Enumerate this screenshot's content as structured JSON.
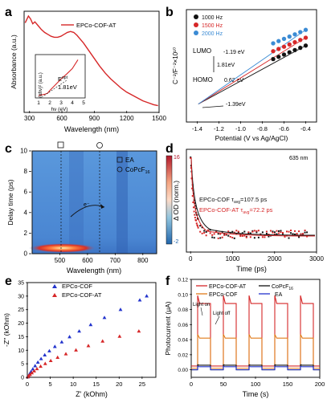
{
  "panels": {
    "a": {
      "letter": "a"
    },
    "b": {
      "letter": "b"
    },
    "c": {
      "letter": "c"
    },
    "d": {
      "letter": "d"
    },
    "e": {
      "letter": "e"
    },
    "f": {
      "letter": "f"
    }
  },
  "chart_data": [
    {
      "panel": "a",
      "type": "line",
      "xlabel": "Wavelength (nm)",
      "ylabel": "Absorbance (a.u.)",
      "xlim": [
        250,
        1500
      ],
      "x_ticks": [
        "300",
        "600",
        "900",
        "1200",
        "1500"
      ],
      "series": [
        {
          "name": "EPCo-COF-AT",
          "color": "#d62728",
          "x": [
            260,
            290,
            310,
            330,
            350,
            380,
            410,
            440,
            470,
            500,
            530,
            560,
            590,
            620,
            650,
            680,
            710,
            740,
            770,
            800,
            850,
            900,
            950,
            1000,
            1050,
            1100,
            1150,
            1200,
            1250,
            1300,
            1350,
            1400,
            1450,
            1490
          ],
          "y": [
            0.93,
            1.0,
            0.97,
            0.92,
            0.94,
            0.9,
            0.86,
            0.83,
            0.81,
            0.79,
            0.78,
            0.78,
            0.79,
            0.81,
            0.83,
            0.84,
            0.83,
            0.8,
            0.76,
            0.72,
            0.64,
            0.56,
            0.48,
            0.41,
            0.35,
            0.3,
            0.25,
            0.21,
            0.18,
            0.15,
            0.12,
            0.1,
            0.08,
            0.07
          ]
        }
      ],
      "inset": {
        "xlabel": "hν (eV)",
        "ylabel": "(αhν)² (a.u.)",
        "x_ticks": [
          "1",
          "2",
          "3",
          "4",
          "5"
        ],
        "xlim": [
          1,
          5
        ],
        "annotation_label": "E",
        "annotation_sup": "g",
        "annotation_sub": "opt",
        "annotation_value": "1.81eV",
        "x": [
          1.0,
          1.5,
          1.8,
          2.0,
          2.5,
          3.0,
          3.5,
          4.0,
          4.5
        ],
        "y": [
          0.02,
          0.05,
          0.08,
          0.15,
          0.3,
          0.45,
          0.58,
          0.72,
          0.95
        ]
      }
    },
    {
      "panel": "b",
      "type": "scatter",
      "xlabel": "Potential (V vs Ag/AgCl)",
      "ylabel": "C⁻²/F⁻²×10¹⁰",
      "xlim": [
        -1.5,
        -0.3
      ],
      "x_ticks": [
        "-1.4",
        "-1.2",
        "-1.0",
        "-0.8",
        "-0.6",
        "-0.4"
      ],
      "legend": [
        {
          "label": "1000 Hz",
          "color": "#111111"
        },
        {
          "label": "1500 Hz",
          "color": "#d62728"
        },
        {
          "label": "2000 Hz",
          "color": "#3b8bd4"
        }
      ],
      "annotations": {
        "lumo": "LUMO",
        "lumo_value": "-1.19 eV",
        "gap": "1.81eV",
        "homo": "HOMO",
        "homo_value": "0.62 eV",
        "flat_band": "-1.39eV"
      },
      "series": [
        {
          "name": "1000 Hz",
          "x": [
            -0.7,
            -0.65,
            -0.6,
            -0.55,
            -0.5,
            -0.45,
            -0.4
          ],
          "y": [
            0.56,
            0.58,
            0.6,
            0.62,
            0.64,
            0.66,
            0.68
          ]
        },
        {
          "name": "1500 Hz",
          "x": [
            -0.7,
            -0.65,
            -0.6,
            -0.55,
            -0.5,
            -0.45,
            -0.4
          ],
          "y": [
            0.63,
            0.65,
            0.67,
            0.69,
            0.71,
            0.73,
            0.75
          ]
        },
        {
          "name": "2000 Hz",
          "x": [
            -0.7,
            -0.65,
            -0.6,
            -0.55,
            -0.5,
            -0.45,
            -0.4
          ],
          "y": [
            0.7,
            0.72,
            0.74,
            0.76,
            0.78,
            0.8,
            0.82
          ]
        }
      ]
    },
    {
      "panel": "c",
      "type": "heatmap",
      "xlabel": "Wavelength (nm)",
      "ylabel": "Delay time (ps)",
      "xlim": [
        400,
        850
      ],
      "ylim": [
        0,
        10
      ],
      "x_ticks": [
        "500",
        "600",
        "700",
        "800"
      ],
      "y_ticks": [
        "0",
        "2",
        "4",
        "6",
        "8",
        "10"
      ],
      "colorbar_ticks": [
        "16",
        "-2"
      ],
      "legend": [
        {
          "label": "EA",
          "marker": "square"
        },
        {
          "label": "CoPcF",
          "marker": "circle",
          "sub": "16"
        }
      ],
      "arrow_label": "e⁻"
    },
    {
      "panel": "d",
      "type": "scatter",
      "xlabel": "Time (ps)",
      "ylabel": "Δ OD (norm.)",
      "xlim": [
        -100,
        3000
      ],
      "x_ticks": [
        "0",
        "1000",
        "2000",
        "3000"
      ],
      "probe_label": "635 nm",
      "series": [
        {
          "name": "EPCo-COF",
          "color": "#111111",
          "tau_label": "τ",
          "tau_sub": "avg",
          "tau_value": "=107.5 ps"
        },
        {
          "name": "EPCo-COF-AT",
          "color": "#d62728",
          "tau_label": "τ",
          "tau_sub": "avg",
          "tau_value": "=72.2 ps"
        }
      ]
    },
    {
      "panel": "e",
      "type": "scatter",
      "xlabel": "Z' (kOhm)",
      "ylabel": "-Z'' (kOhm)",
      "xlim": [
        0,
        28
      ],
      "ylim": [
        0,
        35
      ],
      "x_ticks": [
        "0",
        "5",
        "10",
        "15",
        "20",
        "25"
      ],
      "y_ticks": [
        "0",
        "5",
        "10",
        "15",
        "20",
        "25",
        "30",
        "35"
      ],
      "series": [
        {
          "name": "EPCo-COF",
          "color": "#2233cc",
          "marker": "triangle",
          "x": [
            0.1,
            0.3,
            0.5,
            0.8,
            1.2,
            1.7,
            2.3,
            3.0,
            3.8,
            4.8,
            6.0,
            7.5,
            9.2,
            11.3,
            13.8,
            16.8,
            20.3,
            24.5,
            26.0
          ],
          "y": [
            0.1,
            0.6,
            1.2,
            2.0,
            3.0,
            4.2,
            5.5,
            6.8,
            8.2,
            9.7,
            11.3,
            13.0,
            14.9,
            17.0,
            19.4,
            22.0,
            25.0,
            28.5,
            30.0
          ]
        },
        {
          "name": "EPCo-COF-AT",
          "color": "#d62728",
          "marker": "triangle",
          "x": [
            0.1,
            0.3,
            0.6,
            1.0,
            1.5,
            2.1,
            2.9,
            3.9,
            5.1,
            6.6,
            8.4,
            10.6,
            13.3,
            16.4,
            20.1,
            24.3
          ],
          "y": [
            0.1,
            0.5,
            1.0,
            1.6,
            2.3,
            3.1,
            4.0,
            5.0,
            6.1,
            7.3,
            8.6,
            10.0,
            11.6,
            13.3,
            15.1,
            17.0
          ]
        }
      ]
    },
    {
      "panel": "f",
      "type": "line",
      "xlabel": "Time (s)",
      "ylabel": "Photocurrent (μA)",
      "xlim": [
        0,
        200
      ],
      "ylim": [
        -0.01,
        0.12
      ],
      "x_ticks": [
        "0",
        "50",
        "100",
        "150",
        "200"
      ],
      "y_ticks": [
        "0.00",
        "0.02",
        "0.04",
        "0.06",
        "0.08",
        "0.10",
        "0.12"
      ],
      "annotations": {
        "light_on": "Light on",
        "light_off": "Light off"
      },
      "on_intervals": [
        [
          10,
          30
        ],
        [
          50,
          70
        ],
        [
          90,
          110
        ],
        [
          130,
          150
        ],
        [
          170,
          190
        ]
      ],
      "series": [
        {
          "name": "EPCo-COF-AT",
          "color": "#d62728",
          "on_level": 0.088,
          "off_level": 0.005
        },
        {
          "name": "EPCo-COF",
          "color": "#e07b1a",
          "on_level": 0.042,
          "off_level": 0.002
        },
        {
          "name": "CoPcF",
          "sub": "16",
          "color": "#111111",
          "on_level": 0.006,
          "off_level": 0.0
        },
        {
          "name": "EA",
          "color": "#2233cc",
          "on_level": 0.004,
          "off_level": 0.0
        }
      ]
    }
  ]
}
